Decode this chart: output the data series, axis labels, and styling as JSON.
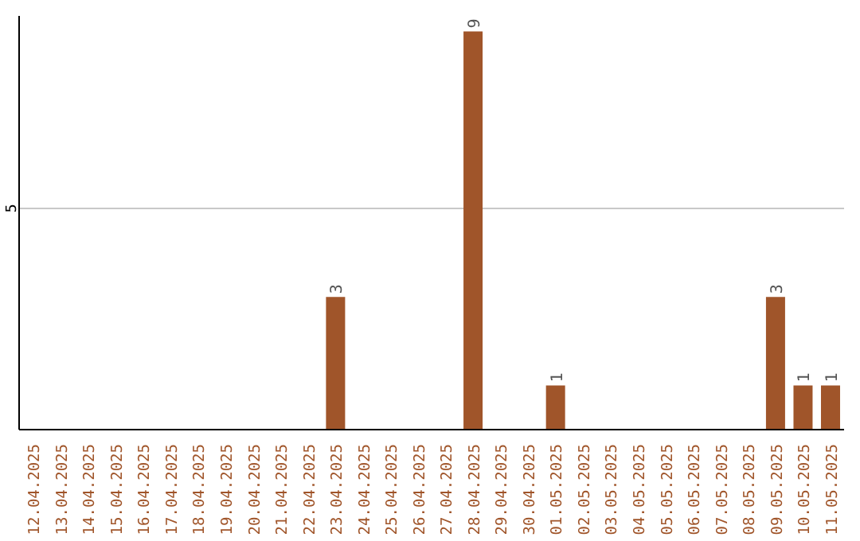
{
  "chart_data": {
    "type": "bar",
    "categories": [
      "12.04.2025",
      "13.04.2025",
      "14.04.2025",
      "15.04.2025",
      "16.04.2025",
      "17.04.2025",
      "18.04.2025",
      "19.04.2025",
      "20.04.2025",
      "21.04.2025",
      "22.04.2025",
      "23.04.2025",
      "24.04.2025",
      "25.04.2025",
      "26.04.2025",
      "27.04.2025",
      "28.04.2025",
      "29.04.2025",
      "30.04.2025",
      "01.05.2025",
      "02.05.2025",
      "03.05.2025",
      "04.05.2025",
      "05.05.2025",
      "06.05.2025",
      "07.05.2025",
      "08.05.2025",
      "09.05.2025",
      "10.05.2025",
      "11.05.2025"
    ],
    "values": [
      0,
      0,
      0,
      0,
      0,
      0,
      0,
      0,
      0,
      0,
      0,
      3,
      0,
      0,
      0,
      0,
      9,
      0,
      0,
      1,
      0,
      0,
      0,
      0,
      0,
      0,
      0,
      3,
      1,
      1
    ],
    "value_labels": [
      null,
      null,
      null,
      null,
      null,
      null,
      null,
      null,
      null,
      null,
      null,
      "3",
      null,
      null,
      null,
      null,
      "9",
      null,
      null,
      "1",
      null,
      null,
      null,
      null,
      null,
      null,
      null,
      "3",
      "1",
      "1"
    ],
    "color": "#a0552a",
    "ylim": [
      0,
      9.35
    ],
    "yticks": [
      5
    ],
    "grid": "y"
  }
}
